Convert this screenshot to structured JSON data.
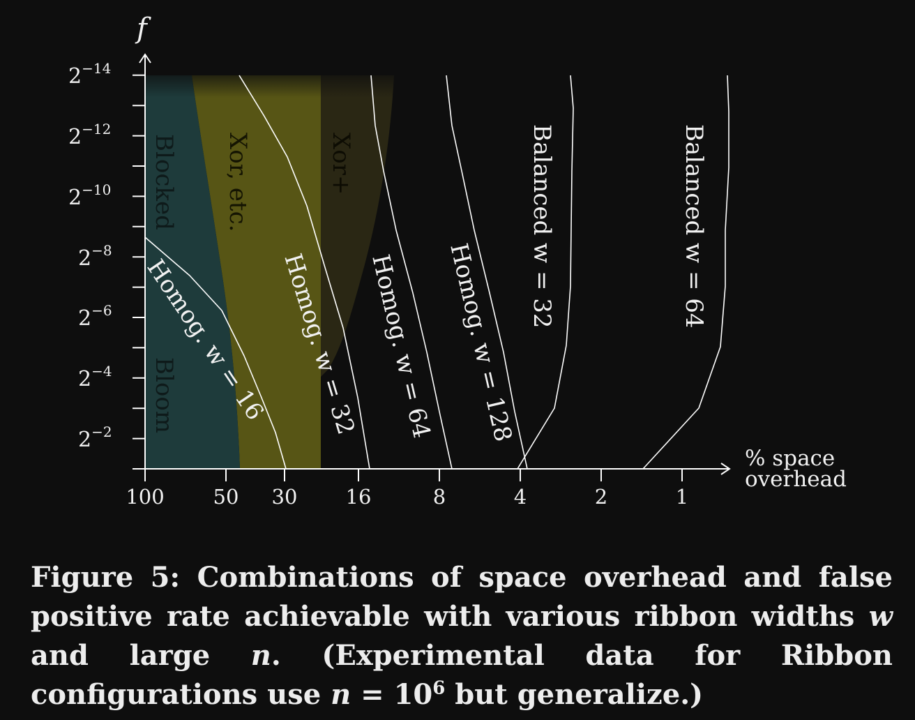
{
  "chart_data": {
    "type": "line",
    "y_axis_label": "f",
    "x_axis_label": [
      "% space",
      "overhead"
    ],
    "x_ticks": [
      "100",
      "50",
      "30",
      "16",
      "8",
      "4",
      "2",
      "1"
    ],
    "y_ticks": [
      "2",
      "2",
      "2",
      "2",
      "2",
      "2",
      "2"
    ],
    "y_tick_exponents": [
      "−2",
      "−4",
      "−6",
      "−8",
      "−10",
      "−12",
      "−14"
    ],
    "x_scale": "log",
    "x_reversed": true,
    "regions": [
      {
        "label": "Blocked",
        "color": "#1e3b3b"
      },
      {
        "label": "Bloom",
        "color": "#1e3b3b"
      },
      {
        "label": "Xor, etc.",
        "color": "#575515"
      },
      {
        "label": "Xor+",
        "color": "#2a2714"
      }
    ],
    "series": [
      {
        "name": "Homog. w = 16",
        "x": [
          100,
          70,
          55,
          45,
          38,
          30
        ],
        "y": [
          8.5,
          7.2,
          5.8,
          4.5,
          3.2,
          1
        ]
      },
      {
        "name": "Homog. w = 32",
        "x": [
          45,
          35,
          28,
          24,
          20,
          18
        ],
        "y": [
          14,
          11,
          8,
          6,
          4,
          1
        ]
      },
      {
        "name": "Homog. w = 64",
        "x": [
          18,
          17,
          16,
          14,
          12,
          10,
          8.8
        ],
        "y": [
          14,
          12,
          9.5,
          7.5,
          5.5,
          3.5,
          1
        ]
      },
      {
        "name": "Homog. w = 128",
        "x": [
          9.5,
          9,
          8.3,
          7.3,
          6,
          5,
          3.9
        ],
        "y": [
          14,
          12,
          9.5,
          7.5,
          5.5,
          3.5,
          1
        ]
      },
      {
        "name": "Balanced w = 32",
        "x": [
          3.0,
          2.9,
          2.9,
          3.1,
          3.3,
          3.9,
          4.1
        ],
        "y": [
          14,
          12.7,
          7.3,
          4.6,
          2.9,
          1.8,
          1
        ]
      },
      {
        "name": "Balanced w = 64",
        "x": [
          0.68,
          0.66,
          0.68,
          0.69,
          0.71,
          0.85,
          1.5
        ],
        "y": [
          14,
          10.9,
          8.4,
          6.1,
          4.0,
          2.8,
          1
        ]
      }
    ]
  },
  "labels": {
    "blocked": "Blocked",
    "bloom": "Bloom",
    "xor": "Xor, etc.",
    "xorplus": "Xor+",
    "h16": "Homog. w = 16",
    "h32": "Homog. w = 32",
    "h64": "Homog. w = 64",
    "h128": "Homog. w = 128",
    "b32": "Balanced w = 32",
    "b64": "Balanced w = 64"
  },
  "caption": {
    "part1": "Figure 5: Combinations of space overhead and false positive rate achievable with various ribbon widths ",
    "w": "w",
    "part2": " and large ",
    "n1": "n",
    "part3": ". (Experimental data for Ribbon configurations use ",
    "n2": "n",
    "part4": " = 10",
    "exp": "6",
    "part5": " but generalize.)"
  }
}
